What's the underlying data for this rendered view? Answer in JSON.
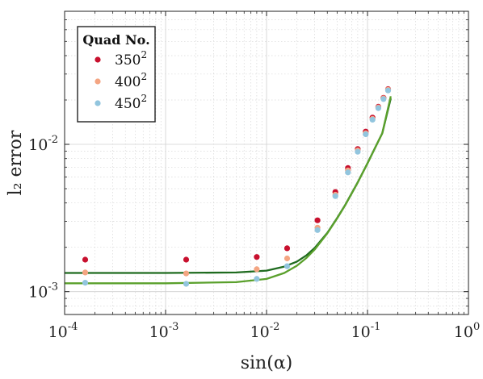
{
  "chart_data": {
    "type": "scatter",
    "title": "",
    "xlabel": "sin(α)",
    "ylabel": "l₂ error",
    "xscale": "log",
    "yscale": "log",
    "xlim": [
      0.0001,
      1
    ],
    "ylim": [
      0.0007,
      0.08
    ],
    "grid": true,
    "legend": {
      "title": "Quad No.",
      "placement": "top-left",
      "entries": [
        {
          "base": "350",
          "sup": "2",
          "color": "#c8102e"
        },
        {
          "base": "400",
          "sup": "2",
          "color": "#f4a582"
        },
        {
          "base": "450",
          "sup": "2",
          "color": "#92c5de"
        }
      ]
    },
    "x_ticks": [
      {
        "base": "10",
        "exp": "-4",
        "value": 0.0001
      },
      {
        "base": "10",
        "exp": "-3",
        "value": 0.001
      },
      {
        "base": "10",
        "exp": "-2",
        "value": 0.01
      },
      {
        "base": "10",
        "exp": "-1",
        "value": 0.1
      },
      {
        "base": "10",
        "exp": "0",
        "value": 1
      }
    ],
    "y_ticks": [
      {
        "base": "10",
        "exp": "-3",
        "value": 0.001
      },
      {
        "base": "10",
        "exp": "-2",
        "value": 0.01
      }
    ],
    "x": [
      0.00016,
      0.0016,
      0.008,
      0.016,
      0.032,
      0.048,
      0.064,
      0.08,
      0.096,
      0.112,
      0.128,
      0.144,
      0.16
    ],
    "series": [
      {
        "values": [
          0.00165,
          0.00165,
          0.00172,
          0.00197,
          0.00305,
          0.00475,
          0.0069,
          0.0093,
          0.0122,
          0.0152,
          0.018,
          0.0207,
          0.0237
        ]
      },
      {
        "values": [
          0.00135,
          0.00133,
          0.00142,
          0.00168,
          0.00272,
          0.00455,
          0.00665,
          0.0091,
          0.0119,
          0.0149,
          0.0178,
          0.0205,
          0.0235
        ]
      },
      {
        "values": [
          0.00115,
          0.00113,
          0.00122,
          0.00149,
          0.00262,
          0.00445,
          0.00645,
          0.0089,
          0.0117,
          0.0147,
          0.0176,
          0.0203,
          0.0232
        ]
      }
    ],
    "fit_curves": [
      {
        "color": "#1f6b1f",
        "floor": 0.00134,
        "x": [
          0.0001,
          0.001,
          0.005,
          0.01,
          0.015,
          0.02,
          0.025,
          0.03,
          0.04,
          0.05,
          0.06,
          0.08,
          0.1,
          0.12,
          0.14,
          0.17
        ],
        "values": [
          0.00134,
          0.00134,
          0.00135,
          0.00139,
          0.00148,
          0.0016,
          0.00177,
          0.00198,
          0.00251,
          0.00316,
          0.00387,
          0.00552,
          0.00745,
          0.0096,
          0.0119,
          0.0205
        ]
      },
      {
        "color": "#5aa02c",
        "floor": 0.00114,
        "x": [
          0.0001,
          0.001,
          0.005,
          0.01,
          0.015,
          0.02,
          0.025,
          0.03,
          0.04,
          0.05,
          0.06,
          0.08,
          0.1,
          0.12,
          0.14,
          0.17
        ],
        "values": [
          0.00114,
          0.00114,
          0.00116,
          0.00122,
          0.00134,
          0.0015,
          0.0017,
          0.00193,
          0.00249,
          0.00314,
          0.00385,
          0.0055,
          0.00742,
          0.0096,
          0.0119,
          0.0212
        ]
      }
    ]
  }
}
